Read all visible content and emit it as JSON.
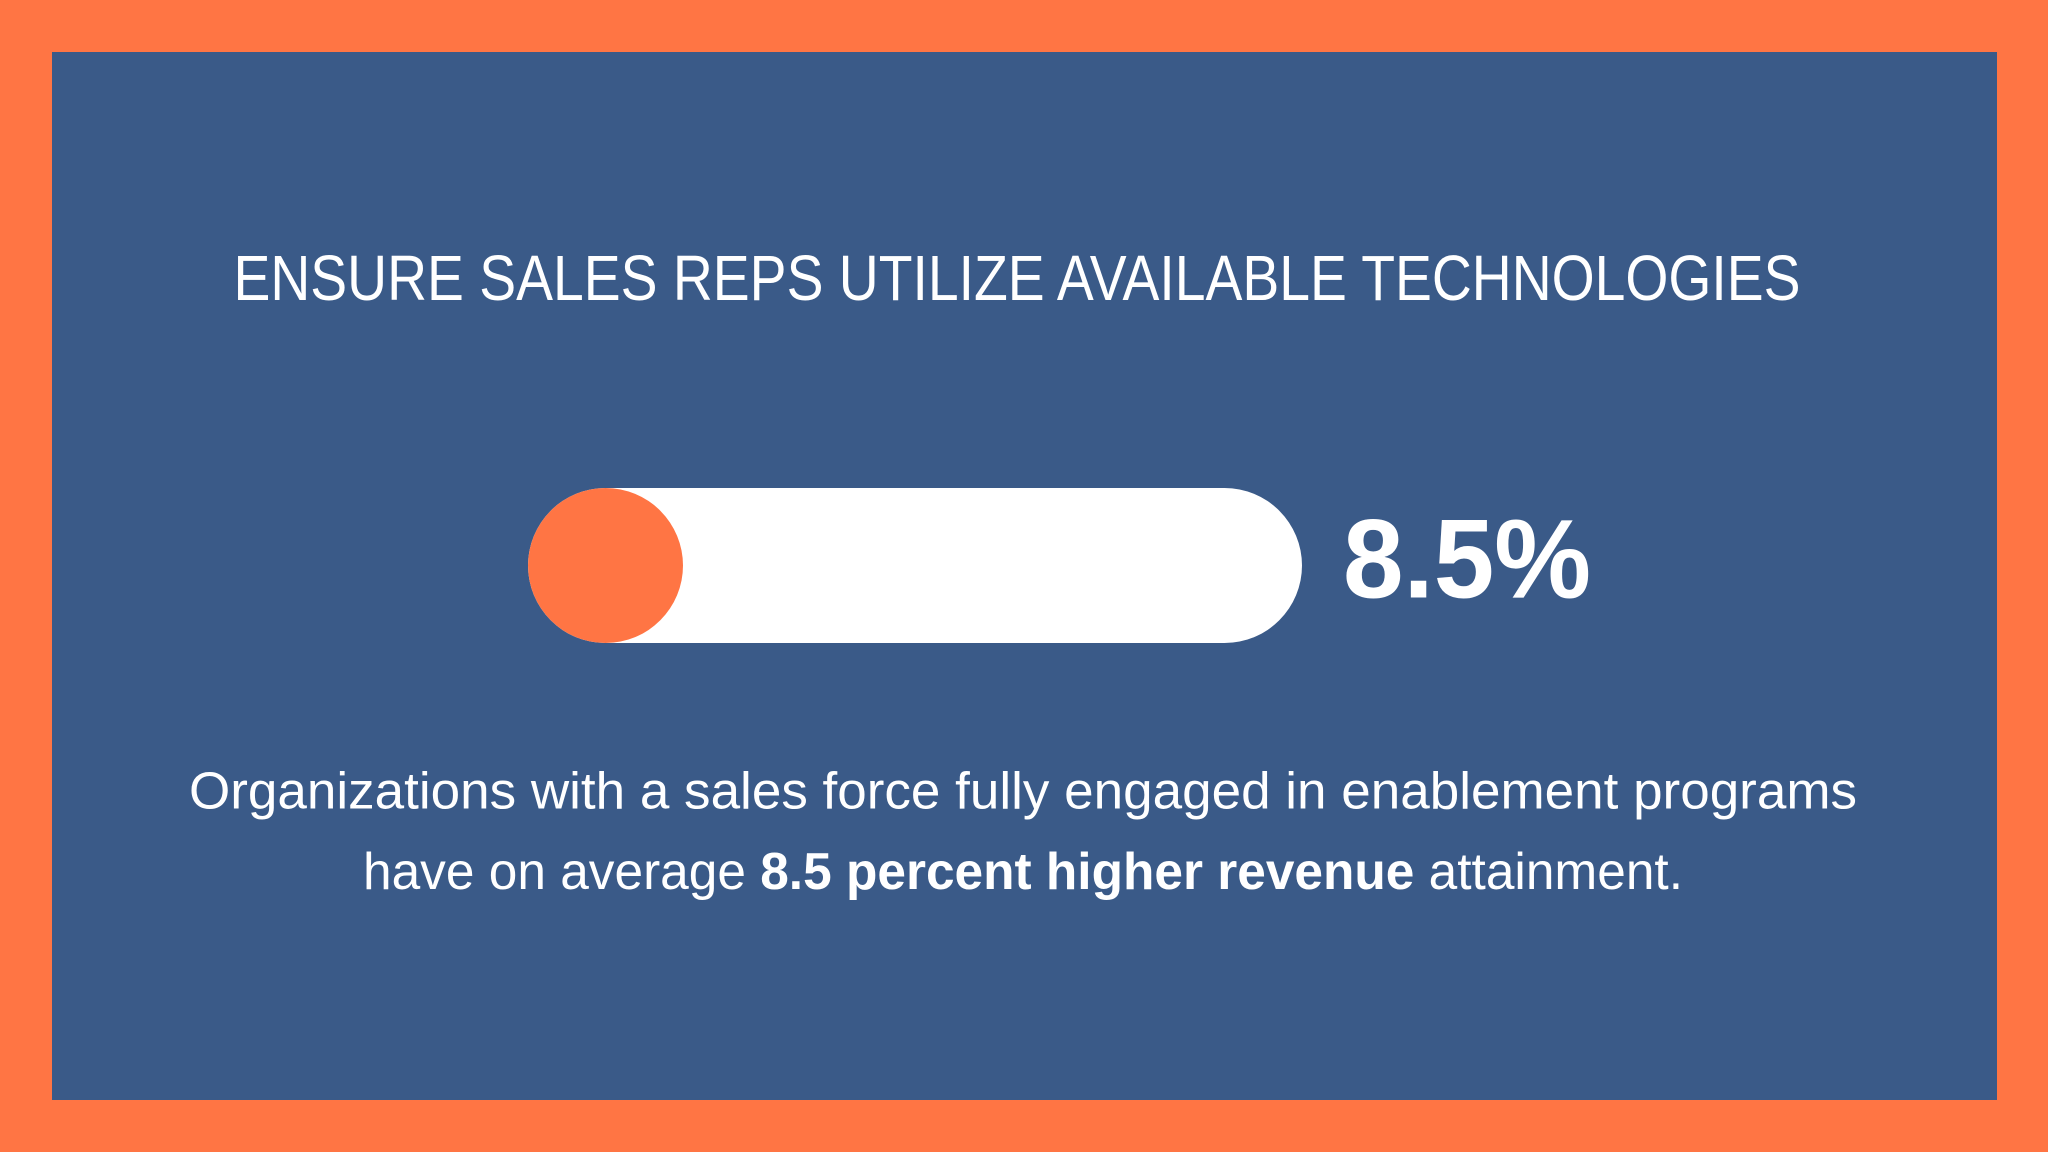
{
  "chart_data": {
    "type": "progress",
    "title": "ENSURE SALES REPS UTILIZE AVAILABLE TECHNOLOGIES",
    "value": 8.5,
    "value_label": "8.5%",
    "xlim": [
      0,
      100
    ],
    "color": "#ff7544",
    "track_color": "#ffffff",
    "description": {
      "line1": "Organizations with a sales force fully engaged in enablement programs",
      "line2": [
        {
          "text": "have on average ",
          "bold": false
        },
        {
          "text": "8.5 percent higher revenue",
          "bold": true
        },
        {
          "text": " attainment.",
          "bold": false
        }
      ]
    }
  }
}
